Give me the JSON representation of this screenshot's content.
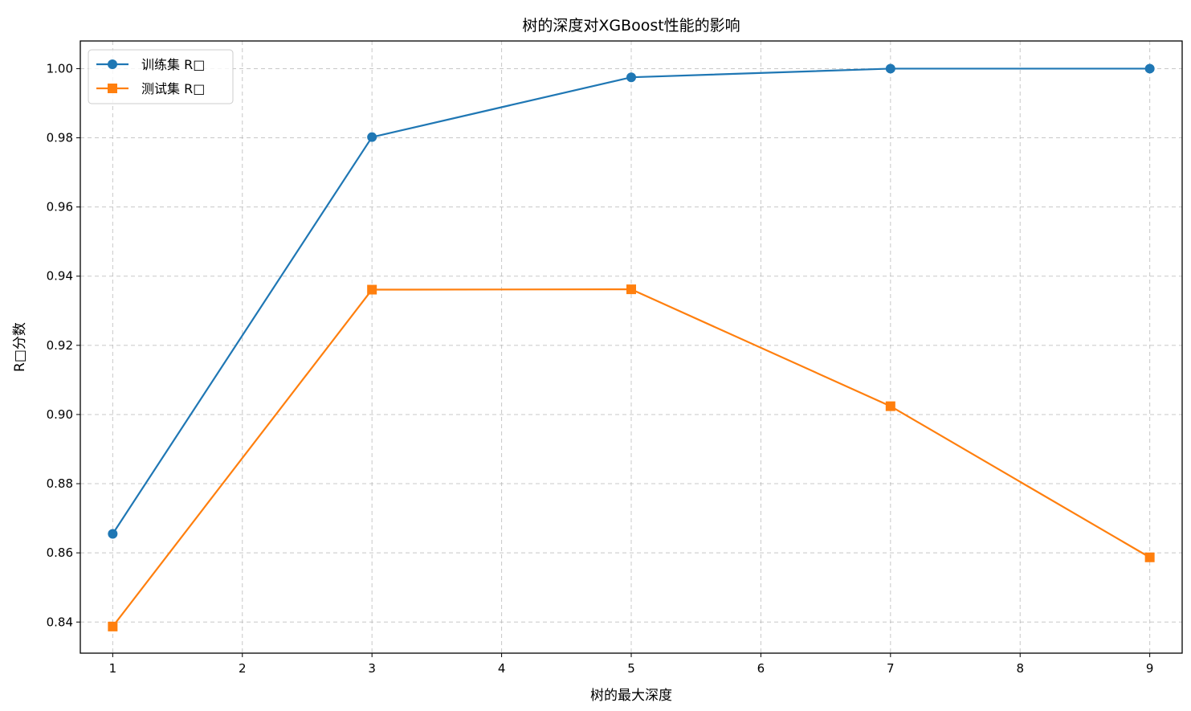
{
  "chart_data": {
    "type": "line",
    "title": "树的深度对XGBoost性能的影响",
    "xlabel": "树的最大深度",
    "ylabel": "R□分数",
    "x": [
      1,
      3,
      5,
      7,
      9
    ],
    "xticks": [
      1,
      2,
      3,
      4,
      5,
      6,
      7,
      8,
      9
    ],
    "xlim": [
      0.75,
      9.25
    ],
    "ylim": [
      0.831,
      1.008
    ],
    "yticks": [
      0.84,
      0.86,
      0.88,
      0.9,
      0.92,
      0.94,
      0.96,
      0.98,
      1.0
    ],
    "ytick_labels": [
      "0.84",
      "0.86",
      "0.88",
      "0.90",
      "0.92",
      "0.94",
      "0.96",
      "0.98",
      "1.00"
    ],
    "grid": true,
    "legend_position": "top-left",
    "series": [
      {
        "name": "训练集 R□",
        "values": [
          0.8655,
          0.9802,
          0.9975,
          1.0,
          1.0
        ],
        "color": "#1f77b4",
        "marker": "circle"
      },
      {
        "name": "测试集 R□",
        "values": [
          0.8387,
          0.9361,
          0.9362,
          0.9024,
          0.8587
        ],
        "color": "#ff7f0e",
        "marker": "square"
      }
    ]
  }
}
